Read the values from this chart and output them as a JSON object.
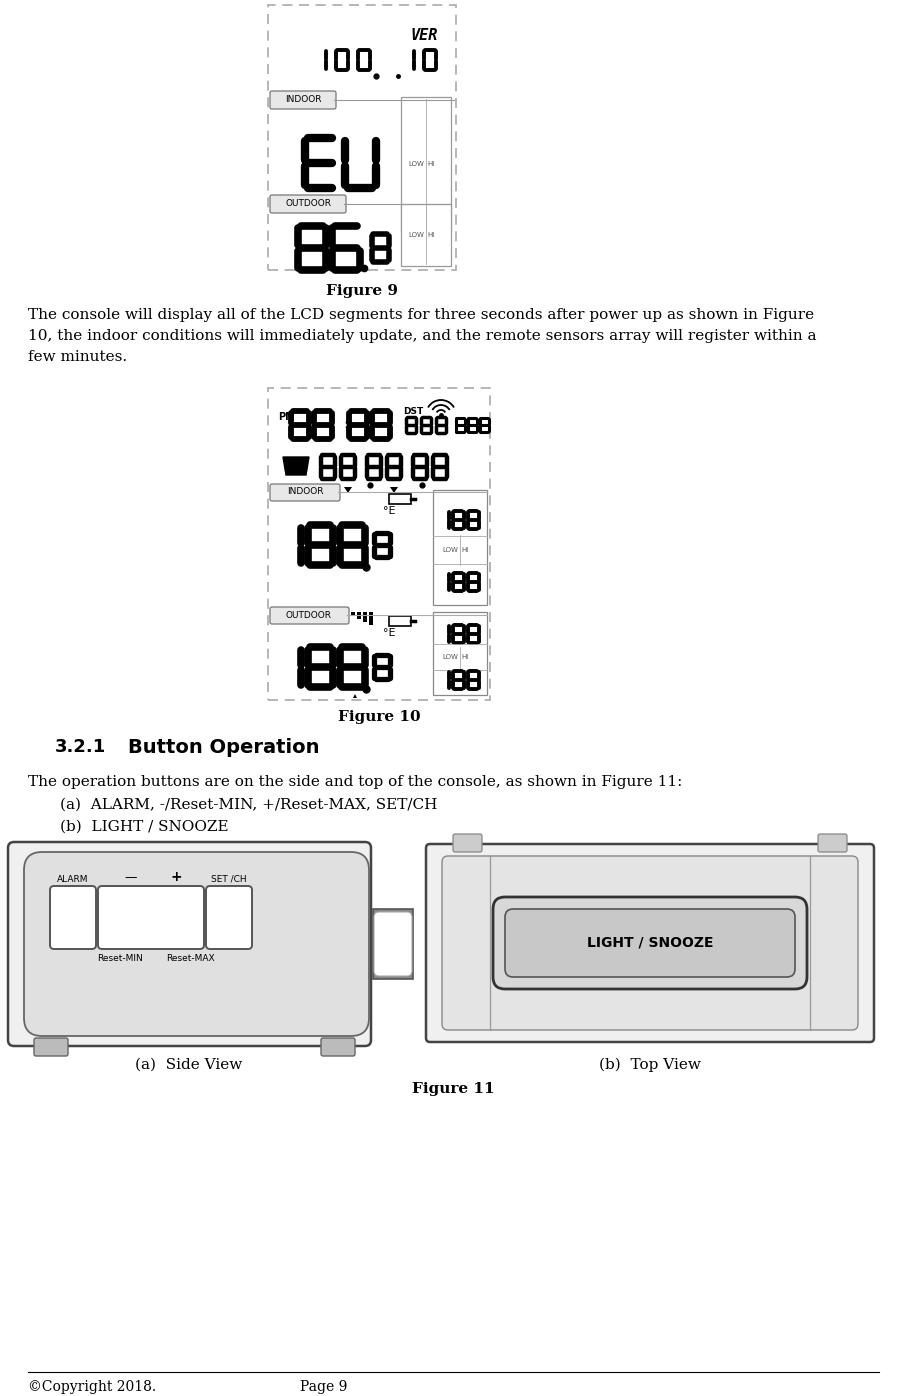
{
  "page_bg": "#ffffff",
  "fig9_caption": "Figure 9",
  "fig10_caption": "Figure 10",
  "fig11_caption": "Figure 11",
  "body_text1_lines": [
    "The console will display all of the LCD segments for three seconds after power up as shown in Figure",
    "10, the indoor conditions will immediately update, and the remote sensors array will register within a",
    "few minutes."
  ],
  "section_num": "3.2.1",
  "section_title": "Button Operation",
  "body_text2": "The operation buttons are on the side and top of the console, as shown in Figure 11:",
  "list_a": "(a)  ALARM, -/Reset-MIN, +/Reset-MAX, SET/CH",
  "list_b": "(b)  LIGHT / SNOOZE",
  "caption_a": "(a)  Side View",
  "caption_b": "(b)  Top View",
  "copyright": "©Copyright 2018.",
  "page_num": "Page 9"
}
